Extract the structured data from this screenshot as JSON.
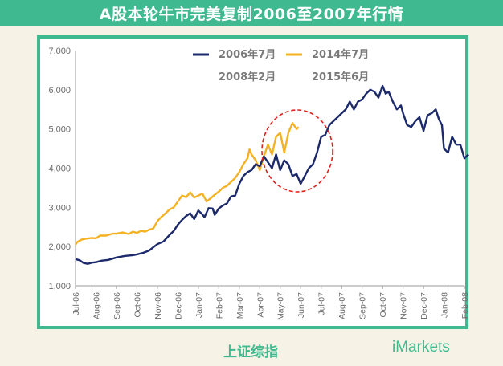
{
  "title": "A股本轮牛市完美复制2006至2007年行情",
  "footer_label": "上证综指",
  "brand": "iMarkets",
  "colors": {
    "accent": "#3fb98f",
    "series_2006": "#1c2a6b",
    "series_2014": "#f4b223",
    "circle": "#e0221f",
    "axis_text": "#6b6b6b"
  },
  "chart_data": {
    "type": "line",
    "ylim": [
      1000,
      7000
    ],
    "yticks": [
      "1,000",
      "2,000",
      "3,000",
      "4,000",
      "5,000",
      "6,000",
      "7,000"
    ],
    "categories": [
      "Jul-06",
      "Aug-06",
      "Sep-06",
      "Oct-06",
      "Nov-06",
      "Dec-06",
      "Jan-07",
      "Feb-07",
      "Mar-07",
      "Apr-07",
      "May-07",
      "Jun-07",
      "Jul-07",
      "Aug-07",
      "Sep-07",
      "Oct-07",
      "Nov-07",
      "Dec-07",
      "Jan-08",
      "Feb-08"
    ],
    "legend": [
      {
        "label": "2006年7月",
        "sublabel": "2008年2月"
      },
      {
        "label": "2014年7月",
        "sublabel": "2015年6月"
      }
    ],
    "series": [
      {
        "x": [
          0,
          0.2,
          0.4,
          0.6,
          0.8,
          1,
          1.3,
          1.6,
          2,
          2.4,
          2.8,
          3,
          3.3,
          3.6,
          3.8,
          4,
          4.3,
          4.6,
          4.8,
          5,
          5.2,
          5.4,
          5.6,
          5.8,
          6,
          6.2,
          6.3,
          6.5,
          6.7,
          6.8,
          7,
          7.2,
          7.4,
          7.6,
          7.8,
          8,
          8.2,
          8.4,
          8.6,
          8.8,
          9,
          9.2,
          9.4,
          9.6,
          9.8,
          10,
          10.2,
          10.4,
          10.6,
          10.8,
          11,
          11.2,
          11.4,
          11.6,
          11.8,
          12,
          12.2,
          12.4,
          12.6,
          12.8,
          13,
          13.2,
          13.4,
          13.6,
          13.8,
          14,
          14.2,
          14.4,
          14.6,
          14.8,
          15,
          15.15,
          15.3,
          15.5,
          15.7,
          15.9,
          16,
          16.2,
          16.4,
          16.6,
          16.8,
          17,
          17.2,
          17.4,
          17.6,
          17.75,
          17.9,
          18,
          18.2,
          18.4,
          18.6,
          18.8,
          19,
          19.2
        ],
        "values": [
          1680,
          1650,
          1580,
          1560,
          1590,
          1600,
          1640,
          1660,
          1720,
          1760,
          1780,
          1800,
          1840,
          1900,
          1980,
          2060,
          2130,
          2300,
          2400,
          2560,
          2680,
          2780,
          2850,
          2700,
          2920,
          2820,
          2750,
          2980,
          2970,
          2810,
          2970,
          3050,
          3100,
          3280,
          3300,
          3600,
          3800,
          3900,
          3950,
          4100,
          4050,
          4300,
          4150,
          4000,
          4350,
          3950,
          4200,
          4100,
          3800,
          3850,
          3600,
          3800,
          4000,
          4100,
          4400,
          4800,
          4850,
          5100,
          5200,
          5300,
          5400,
          5500,
          5700,
          5500,
          5700,
          5750,
          5900,
          6000,
          5950,
          5800,
          6100,
          5900,
          5950,
          5700,
          5500,
          5600,
          5400,
          5100,
          5050,
          5200,
          5300,
          4950,
          5350,
          5400,
          5500,
          5250,
          5100,
          4500,
          4400,
          4800,
          4600,
          4600,
          4250,
          4350
        ],
        "name": "2006年7月"
      },
      {
        "x": [
          0,
          0.1,
          0.3,
          0.5,
          0.8,
          1,
          1.2,
          1.5,
          1.8,
          2,
          2.3,
          2.6,
          2.8,
          3,
          3.2,
          3.4,
          3.6,
          3.8,
          4,
          4.2,
          4.4,
          4.6,
          4.8,
          5,
          5.2,
          5.4,
          5.6,
          5.8,
          6,
          6.2,
          6.4,
          6.6,
          6.8,
          7,
          7.2,
          7.4,
          7.6,
          7.8,
          8,
          8.2,
          8.4,
          8.5,
          8.6,
          8.8,
          9,
          9.2,
          9.3,
          9.4,
          9.6,
          9.8,
          10,
          10.2,
          10.4,
          10.6,
          10.8,
          10.9
        ],
        "values": [
          2050,
          2120,
          2180,
          2200,
          2220,
          2210,
          2280,
          2280,
          2330,
          2330,
          2360,
          2320,
          2380,
          2350,
          2400,
          2380,
          2430,
          2460,
          2650,
          2760,
          2850,
          2950,
          3000,
          3150,
          3300,
          3260,
          3380,
          3250,
          3300,
          3350,
          3150,
          3230,
          3320,
          3400,
          3500,
          3550,
          3650,
          3750,
          3900,
          4100,
          4250,
          4480,
          4350,
          4200,
          3950,
          4300,
          4450,
          4600,
          4350,
          4800,
          4900,
          4400,
          4900,
          5150,
          5000,
          5050
        ],
        "name": "2014年7月"
      }
    ]
  }
}
